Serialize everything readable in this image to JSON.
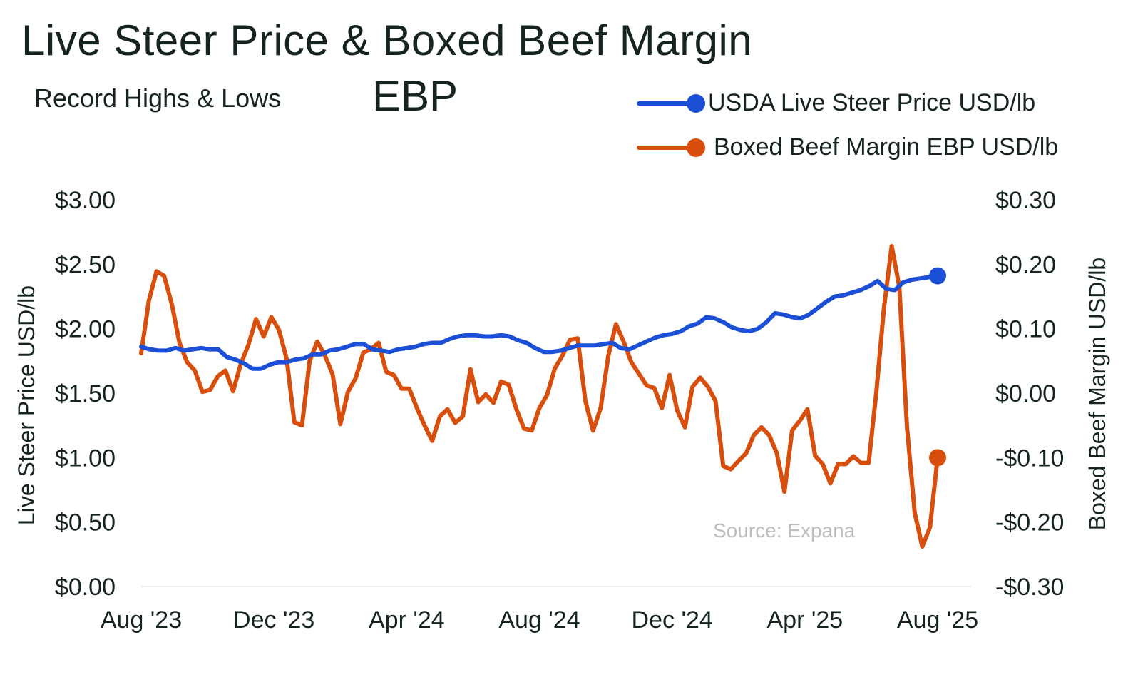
{
  "chart_data": {
    "type": "line",
    "title": "Live Steer Price & Boxed Beef Margin",
    "title_line2": "EBP",
    "subtitle": "Record Highs & Lows",
    "source": "Source: Expana",
    "x_tick_labels": [
      "Aug '23",
      "Dec '23",
      "Apr '24",
      "Aug '24",
      "Dec '24",
      "Apr '25",
      "Aug '25"
    ],
    "x_range": [
      "2023-08",
      "2025-08"
    ],
    "y_left": {
      "label": "Live Steer Price USD/lb",
      "range": [
        0,
        3
      ],
      "tick_values": [
        0,
        0.5,
        1,
        1.5,
        2,
        2.5,
        3
      ],
      "tick_labels": [
        "$0.00",
        "$0.50",
        "$1.00",
        "$1.50",
        "$2.00",
        "$2.50",
        "$3.00"
      ]
    },
    "y_right": {
      "label": "Boxed Beef Margin USD/lb",
      "range": [
        -0.3,
        0.3
      ],
      "tick_values": [
        -0.3,
        -0.2,
        -0.1,
        0,
        0.1,
        0.2,
        0.3
      ],
      "tick_labels": [
        "-$0.30",
        "-$0.20",
        "-$0.10",
        "$0.00",
        "$0.10",
        "$0.20",
        "$0.30"
      ]
    },
    "grid": false,
    "legend_position": "top-right",
    "series": [
      {
        "name": "USDA Live Steer Price USD/lb",
        "axis": "left",
        "color": "#1a4fd6",
        "values": [
          1.86,
          1.84,
          1.83,
          1.83,
          1.85,
          1.83,
          1.84,
          1.85,
          1.84,
          1.84,
          1.78,
          1.76,
          1.73,
          1.69,
          1.69,
          1.72,
          1.74,
          1.74,
          1.76,
          1.77,
          1.8,
          1.8,
          1.83,
          1.84,
          1.86,
          1.88,
          1.88,
          1.84,
          1.83,
          1.82,
          1.84,
          1.85,
          1.86,
          1.88,
          1.89,
          1.89,
          1.92,
          1.94,
          1.95,
          1.95,
          1.94,
          1.94,
          1.95,
          1.94,
          1.91,
          1.89,
          1.85,
          1.82,
          1.82,
          1.83,
          1.85,
          1.87,
          1.87,
          1.87,
          1.88,
          1.89,
          1.85,
          1.84,
          1.87,
          1.9,
          1.93,
          1.95,
          1.96,
          1.98,
          2.02,
          2.04,
          2.09,
          2.08,
          2.05,
          2.01,
          1.99,
          1.98,
          2.0,
          2.05,
          2.12,
          2.11,
          2.09,
          2.08,
          2.11,
          2.16,
          2.21,
          2.25,
          2.26,
          2.28,
          2.3,
          2.33,
          2.37,
          2.31,
          2.3,
          2.36,
          2.38,
          2.39,
          2.4,
          2.41
        ]
      },
      {
        "name": "Boxed Beef Margin EBP USD/lb",
        "axis": "right",
        "color": "#d84e0c",
        "values": [
          0.062,
          0.143,
          0.189,
          0.182,
          0.138,
          0.078,
          0.048,
          0.035,
          0.002,
          0.005,
          0.026,
          0.035,
          0.003,
          0.045,
          0.075,
          0.115,
          0.088,
          0.118,
          0.098,
          0.053,
          -0.045,
          -0.05,
          0.05,
          0.08,
          0.058,
          0.029,
          -0.048,
          0.002,
          0.023,
          0.063,
          0.068,
          0.078,
          0.033,
          0.028,
          0.007,
          0.007,
          -0.023,
          -0.05,
          -0.074,
          -0.036,
          -0.025,
          -0.046,
          -0.036,
          0.037,
          -0.014,
          -0.002,
          -0.015,
          0.018,
          0.013,
          -0.025,
          -0.055,
          -0.058,
          -0.023,
          -0.003,
          0.038,
          0.058,
          0.083,
          0.085,
          -0.012,
          -0.058,
          -0.023,
          0.058,
          0.107,
          0.08,
          0.048,
          0.03,
          0.012,
          0.008,
          -0.023,
          0.028,
          -0.027,
          -0.053,
          0.01,
          0.024,
          0.01,
          -0.012,
          -0.113,
          -0.118,
          -0.105,
          -0.093,
          -0.065,
          -0.053,
          -0.065,
          -0.093,
          -0.153,
          -0.058,
          -0.043,
          -0.025,
          -0.097,
          -0.11,
          -0.14,
          -0.11,
          -0.11,
          -0.098,
          -0.108,
          -0.108,
          0.002,
          0.133,
          0.228,
          0.165,
          -0.052,
          -0.185,
          -0.238,
          -0.208,
          -0.1
        ]
      }
    ]
  }
}
